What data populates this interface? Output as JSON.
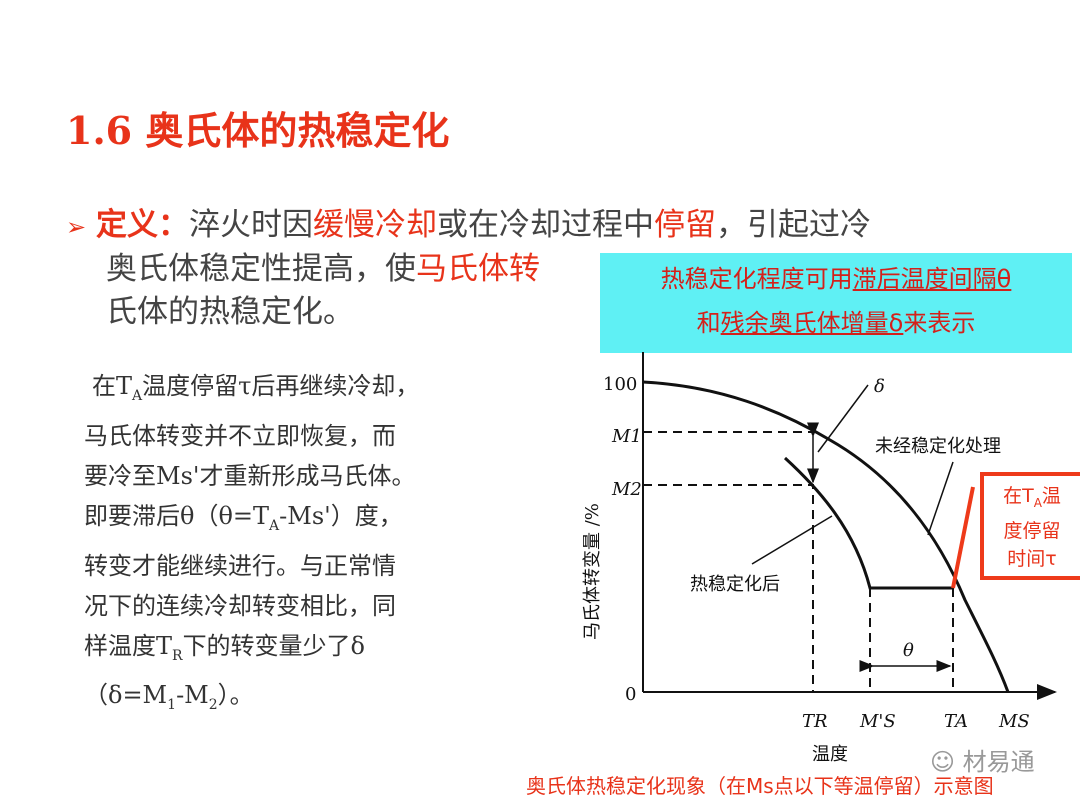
{
  "title": "1.6 奥氏体的热稳定化",
  "definition": {
    "bullet_icon": "arrow-bullet-icon",
    "label": "定义：",
    "line1": [
      "淬火时因",
      "缓慢冷却",
      "或在冷却过程中",
      "停留",
      "，引起过冷"
    ],
    "line2": [
      "奥氏体稳定性提高，使",
      "马氏体转"
    ],
    "line3": "氏体的热稳定化。"
  },
  "callout": {
    "line1_prefix": "热稳定化程度可用",
    "line1_underlined": "滞后温度间隔θ",
    "line2_prefix": "和",
    "line2_underlined": "残余奥氏体增量δ",
    "line2_suffix": "来表示"
  },
  "side_text": {
    "lines": [
      "在T",
      "A",
      "温度停留τ后再继续冷却，",
      "马氏体转变并不立即恢复，而",
      "要冷至Ms'才重新形成马氏体。",
      "即要滞后θ（θ=T",
      "A",
      "-Ms'）度，",
      "转变才能继续进行。与正常情",
      "况下的连续冷却转变相比，同",
      "样温度T",
      "R",
      "下的转变量少了δ",
      "（δ=M",
      "1",
      "-M",
      "2",
      "）。"
    ]
  },
  "diagram": {
    "ylabel": "马氏体转变量 /%",
    "xlabel": "温度",
    "y_ticks": [
      "100",
      "M1",
      "M2",
      "0"
    ],
    "x_ticks": [
      "TR",
      "M'S",
      "TA",
      "MS"
    ],
    "label_delta": "δ",
    "label_theta": "θ",
    "label_untreated": "未经稳定化处理",
    "label_stabilized": "热稳定化后",
    "red_box": [
      "在T",
      "A",
      "温",
      "度停留",
      "时间τ"
    ]
  },
  "caption": "奥氏体热稳定化现象（在Ms点以下等温停留）示意图",
  "watermark": "材易通",
  "colors": {
    "accent": "#e8331a",
    "callout_bg": "#5ff0f4"
  }
}
